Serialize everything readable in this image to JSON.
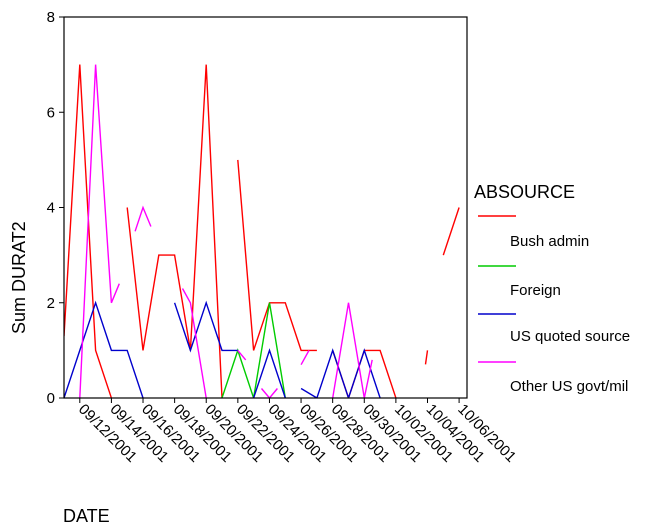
{
  "chart_data": {
    "type": "line",
    "title": "",
    "xlabel": "DATE",
    "ylabel": "Sum DURAT2",
    "ylim": [
      0,
      8
    ],
    "y_ticks": [
      0,
      2,
      4,
      6,
      8
    ],
    "x_ticks": [
      "09/12/2001",
      "09/14/2001",
      "09/16/2001",
      "09/18/2001",
      "09/20/2001",
      "09/22/2001",
      "09/24/2001",
      "09/26/2001",
      "09/28/2001",
      "09/30/2001",
      "10/02/2001",
      "10/04/2001",
      "10/06/2001"
    ],
    "x_tick_days": [
      1,
      3,
      5,
      7,
      9,
      11,
      13,
      15,
      17,
      19,
      21,
      23,
      25
    ],
    "xlim": [
      0,
      25.5
    ],
    "grid": false,
    "legend": {
      "title": "ABSOURCE",
      "position": "right"
    },
    "series": [
      {
        "name": "Bush admin",
        "color": "#ff0000",
        "segments": [
          [
            [
              0,
              1.3
            ],
            [
              1,
              7
            ],
            [
              2,
              1
            ],
            [
              3,
              0
            ]
          ],
          [
            [
              4,
              4
            ],
            [
              5,
              1
            ],
            [
              6,
              3
            ],
            [
              7,
              3
            ],
            [
              8,
              1
            ],
            [
              9,
              7
            ],
            [
              10,
              0
            ]
          ],
          [
            [
              11,
              5
            ],
            [
              12,
              1
            ],
            [
              13,
              2
            ],
            [
              14,
              2
            ],
            [
              15,
              1
            ],
            [
              16,
              1
            ]
          ],
          [
            [
              17,
              1
            ],
            [
              18,
              0
            ],
            [
              19,
              1
            ],
            [
              20,
              1
            ],
            [
              21,
              0
            ]
          ],
          [
            [
              23,
              1
            ]
          ],
          [
            [
              24,
              3
            ],
            [
              25,
              4
            ]
          ]
        ]
      },
      {
        "name": "Foreign",
        "color": "#00cc00",
        "segments": [
          [
            [
              10,
              0
            ],
            [
              11,
              1
            ],
            [
              12,
              0
            ],
            [
              13,
              2
            ],
            [
              14,
              0
            ]
          ]
        ]
      },
      {
        "name": "US quoted source",
        "color": "#0000cc",
        "segments": [
          [
            [
              0,
              0
            ],
            [
              1,
              1
            ],
            [
              2,
              2
            ],
            [
              3,
              1
            ],
            [
              4,
              1
            ],
            [
              5,
              0
            ]
          ],
          [
            [
              7,
              2
            ],
            [
              8,
              1
            ],
            [
              9,
              2
            ],
            [
              10,
              1
            ],
            [
              11,
              1
            ]
          ],
          [
            [
              12,
              0
            ],
            [
              13,
              1
            ],
            [
              14,
              0
            ]
          ],
          [
            [
              15,
              0.2
            ],
            [
              16,
              0
            ],
            [
              17,
              1
            ],
            [
              18,
              0
            ],
            [
              19,
              1
            ],
            [
              20,
              0
            ]
          ]
        ]
      },
      {
        "name": "Other US govt/mil",
        "color": "#ff00ff",
        "segments": [
          [
            [
              1,
              0
            ],
            [
              2,
              7
            ],
            [
              3,
              2
            ],
            [
              3.5,
              2.4
            ]
          ],
          [
            [
              4.5,
              3.5
            ],
            [
              5,
              4
            ],
            [
              5.5,
              3.6
            ]
          ],
          [
            [
              7.5,
              2.3
            ],
            [
              8,
              2
            ],
            [
              9,
              0
            ]
          ],
          [
            [
              11,
              1
            ],
            [
              11.5,
              0.8
            ]
          ],
          [
            [
              12.5,
              0.2
            ],
            [
              13,
              0
            ],
            [
              13.5,
              0.2
            ]
          ],
          [
            [
              15,
              0.7
            ],
            [
              15.5,
              1
            ]
          ],
          [
            [
              19,
              0
            ],
            [
              19.5,
              0.8
            ]
          ],
          [
            [
              17,
              0
            ],
            [
              18,
              2
            ],
            [
              19,
              0
            ]
          ]
        ]
      }
    ]
  }
}
